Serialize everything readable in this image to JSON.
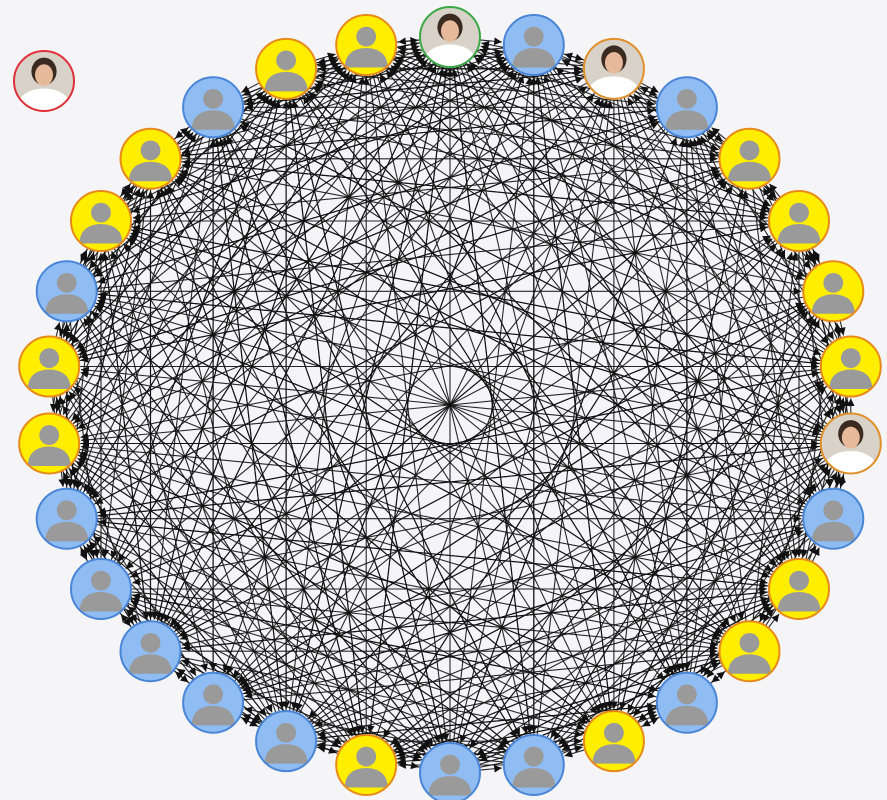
{
  "graph": {
    "colors": {
      "background": "#f5f5f7",
      "edge": "#111111",
      "yellow_fill": "#ffee00",
      "yellow_ring": "#e88a1a",
      "blue_fill": "#8fbcf2",
      "blue_ring": "#4a86d8",
      "photo_ring_red": "#e0303a",
      "photo_ring_green": "#3aa845",
      "photo_ring_orange": "#e0902a",
      "silhouette": "#9a9a9a",
      "photo_bg": "#d9d2c8",
      "photo_face": "#e5b99a",
      "photo_hair": "#3a2a20",
      "photo_coat": "#ffffff"
    },
    "isolated_node": {
      "kind": "photo",
      "ring": "red",
      "icon": "profile-photo"
    },
    "ring_nodes": [
      {
        "kind": "photo",
        "ring": "green",
        "icon": "profile-photo"
      },
      {
        "kind": "blue",
        "icon": "person-silhouette"
      },
      {
        "kind": "photo",
        "ring": "orange",
        "icon": "profile-photo"
      },
      {
        "kind": "blue",
        "icon": "person-silhouette"
      },
      {
        "kind": "yellow",
        "icon": "person-silhouette"
      },
      {
        "kind": "yellow",
        "icon": "person-silhouette"
      },
      {
        "kind": "yellow",
        "icon": "person-silhouette"
      },
      {
        "kind": "yellow",
        "icon": "person-silhouette"
      },
      {
        "kind": "photo",
        "ring": "orange",
        "icon": "profile-photo"
      },
      {
        "kind": "blue",
        "icon": "person-silhouette"
      },
      {
        "kind": "yellow",
        "icon": "person-silhouette"
      },
      {
        "kind": "yellow",
        "icon": "person-silhouette"
      },
      {
        "kind": "blue",
        "icon": "person-silhouette"
      },
      {
        "kind": "yellow",
        "icon": "person-silhouette"
      },
      {
        "kind": "blue",
        "icon": "person-silhouette"
      },
      {
        "kind": "blue",
        "icon": "person-silhouette"
      },
      {
        "kind": "yellow",
        "icon": "person-silhouette"
      },
      {
        "kind": "blue",
        "icon": "person-silhouette"
      },
      {
        "kind": "blue",
        "icon": "person-silhouette"
      },
      {
        "kind": "blue",
        "icon": "person-silhouette"
      },
      {
        "kind": "blue",
        "icon": "person-silhouette"
      },
      {
        "kind": "blue",
        "icon": "person-silhouette"
      },
      {
        "kind": "yellow",
        "icon": "person-silhouette"
      },
      {
        "kind": "yellow",
        "icon": "person-silhouette"
      },
      {
        "kind": "blue",
        "icon": "person-silhouette"
      },
      {
        "kind": "yellow",
        "icon": "person-silhouette"
      },
      {
        "kind": "yellow",
        "icon": "person-silhouette"
      },
      {
        "kind": "blue",
        "icon": "person-silhouette"
      },
      {
        "kind": "yellow",
        "icon": "person-silhouette"
      },
      {
        "kind": "yellow",
        "icon": "person-silhouette"
      }
    ]
  }
}
